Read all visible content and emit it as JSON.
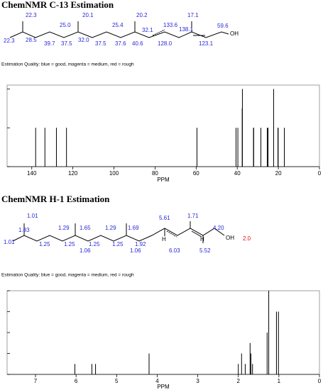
{
  "chart_data": [
    {
      "type": "stem",
      "title": "ChemNMR C-13 Estimation",
      "structure_labels": [
        {
          "text": "22.3",
          "color": "#2828d8"
        },
        {
          "text": "20.1",
          "color": "#2828d8"
        },
        {
          "text": "20.2",
          "color": "#2828d8"
        },
        {
          "text": "17.1",
          "color": "#2828d8"
        },
        {
          "text": "25.0",
          "color": "#2828d8"
        },
        {
          "text": "25.4",
          "color": "#2828d8"
        },
        {
          "text": "133.6",
          "color": "#2828d8"
        },
        {
          "text": "138.1",
          "color": "#2828d8"
        },
        {
          "text": "32.1",
          "color": "#2828d8"
        },
        {
          "text": "59.6",
          "color": "#2828d8"
        },
        {
          "text": "22.3",
          "color": "#2828d8"
        },
        {
          "text": "28.5",
          "color": "#2828d8"
        },
        {
          "text": "39.7",
          "color": "#2828d8"
        },
        {
          "text": "37.5",
          "color": "#2828d8"
        },
        {
          "text": "32.0",
          "color": "#2828d8"
        },
        {
          "text": "37.5",
          "color": "#2828d8"
        },
        {
          "text": "37.6",
          "color": "#2828d8"
        },
        {
          "text": "40.6",
          "color": "#2828d8"
        },
        {
          "text": "128.0",
          "color": "#2828d8"
        },
        {
          "text": "123.1",
          "color": "#2828d8"
        },
        {
          "text": "OH",
          "color": "#000000"
        }
      ],
      "quality_note": "Estimation Quality: blue = good, magenta = medium, red = rough",
      "x": [
        138.1,
        133.6,
        128.0,
        123.1,
        59.6,
        40.6,
        39.7,
        37.6,
        37.5,
        32.1,
        32.0,
        28.5,
        25.4,
        25.0,
        22.3,
        20.2,
        20.1,
        17.1
      ],
      "values": [
        1,
        1,
        1,
        1,
        1,
        1,
        1,
        1.5,
        2,
        1,
        1,
        1,
        1,
        1,
        2,
        1,
        1,
        1
      ],
      "color": "#000000",
      "xlabel": "PPM",
      "xlim": [
        152,
        0
      ],
      "xticks": [
        140,
        120,
        100,
        80,
        60,
        40,
        20,
        0
      ],
      "ylim": [
        0,
        2.1
      ],
      "yticks": [
        0,
        1,
        2
      ]
    },
    {
      "type": "stem",
      "title": "ChemNMR H-1 Estimation",
      "structure_labels": [
        {
          "text": "1.01",
          "color": "#2828d8"
        },
        {
          "text": "1.83",
          "color": "#2828d8"
        },
        {
          "text": "1.01",
          "color": "#2828d8"
        },
        {
          "text": "1.29",
          "color": "#2828d8"
        },
        {
          "text": "1.65",
          "color": "#2828d8"
        },
        {
          "text": "1.29",
          "color": "#2828d8"
        },
        {
          "text": "1.69",
          "color": "#2828d8"
        },
        {
          "text": "5.61",
          "color": "#2828d8"
        },
        {
          "text": "1.71",
          "color": "#2828d8"
        },
        {
          "text": "4.20",
          "color": "#2828d8"
        },
        {
          "text": "1.25",
          "color": "#2828d8"
        },
        {
          "text": "1.25",
          "color": "#2828d8"
        },
        {
          "text": "1.06",
          "color": "#2828d8"
        },
        {
          "text": "1.25",
          "color": "#2828d8"
        },
        {
          "text": "1.25",
          "color": "#2828d8"
        },
        {
          "text": "1.92",
          "color": "#2828d8"
        },
        {
          "text": "1.06",
          "color": "#2828d8"
        },
        {
          "text": "6.03",
          "color": "#2828d8"
        },
        {
          "text": "5.52",
          "color": "#2828d8"
        },
        {
          "text": "OH",
          "color": "#000000"
        },
        {
          "text": "2.0",
          "color": "#e01010"
        },
        {
          "text": "H",
          "color": "#000000"
        },
        {
          "text": "H",
          "color": "#000000"
        }
      ],
      "quality_note": "Estimation Quality: blue = good, magenta = medium, red = rough",
      "x": [
        6.03,
        5.61,
        5.52,
        4.2,
        2.0,
        1.92,
        1.83,
        1.71,
        1.69,
        1.65,
        1.29,
        1.25,
        1.06,
        1.01
      ],
      "values": [
        1,
        1,
        1,
        2,
        1,
        2,
        1,
        3,
        2,
        1,
        4,
        8,
        6,
        6
      ],
      "color": "#000000",
      "xlabel": "PPM",
      "xlim": [
        7.7,
        0
      ],
      "xticks": [
        7,
        6,
        5,
        4,
        3,
        2,
        1,
        0
      ],
      "ylim": [
        0,
        8
      ],
      "yticks": [
        0,
        2,
        4,
        6,
        8
      ]
    }
  ]
}
